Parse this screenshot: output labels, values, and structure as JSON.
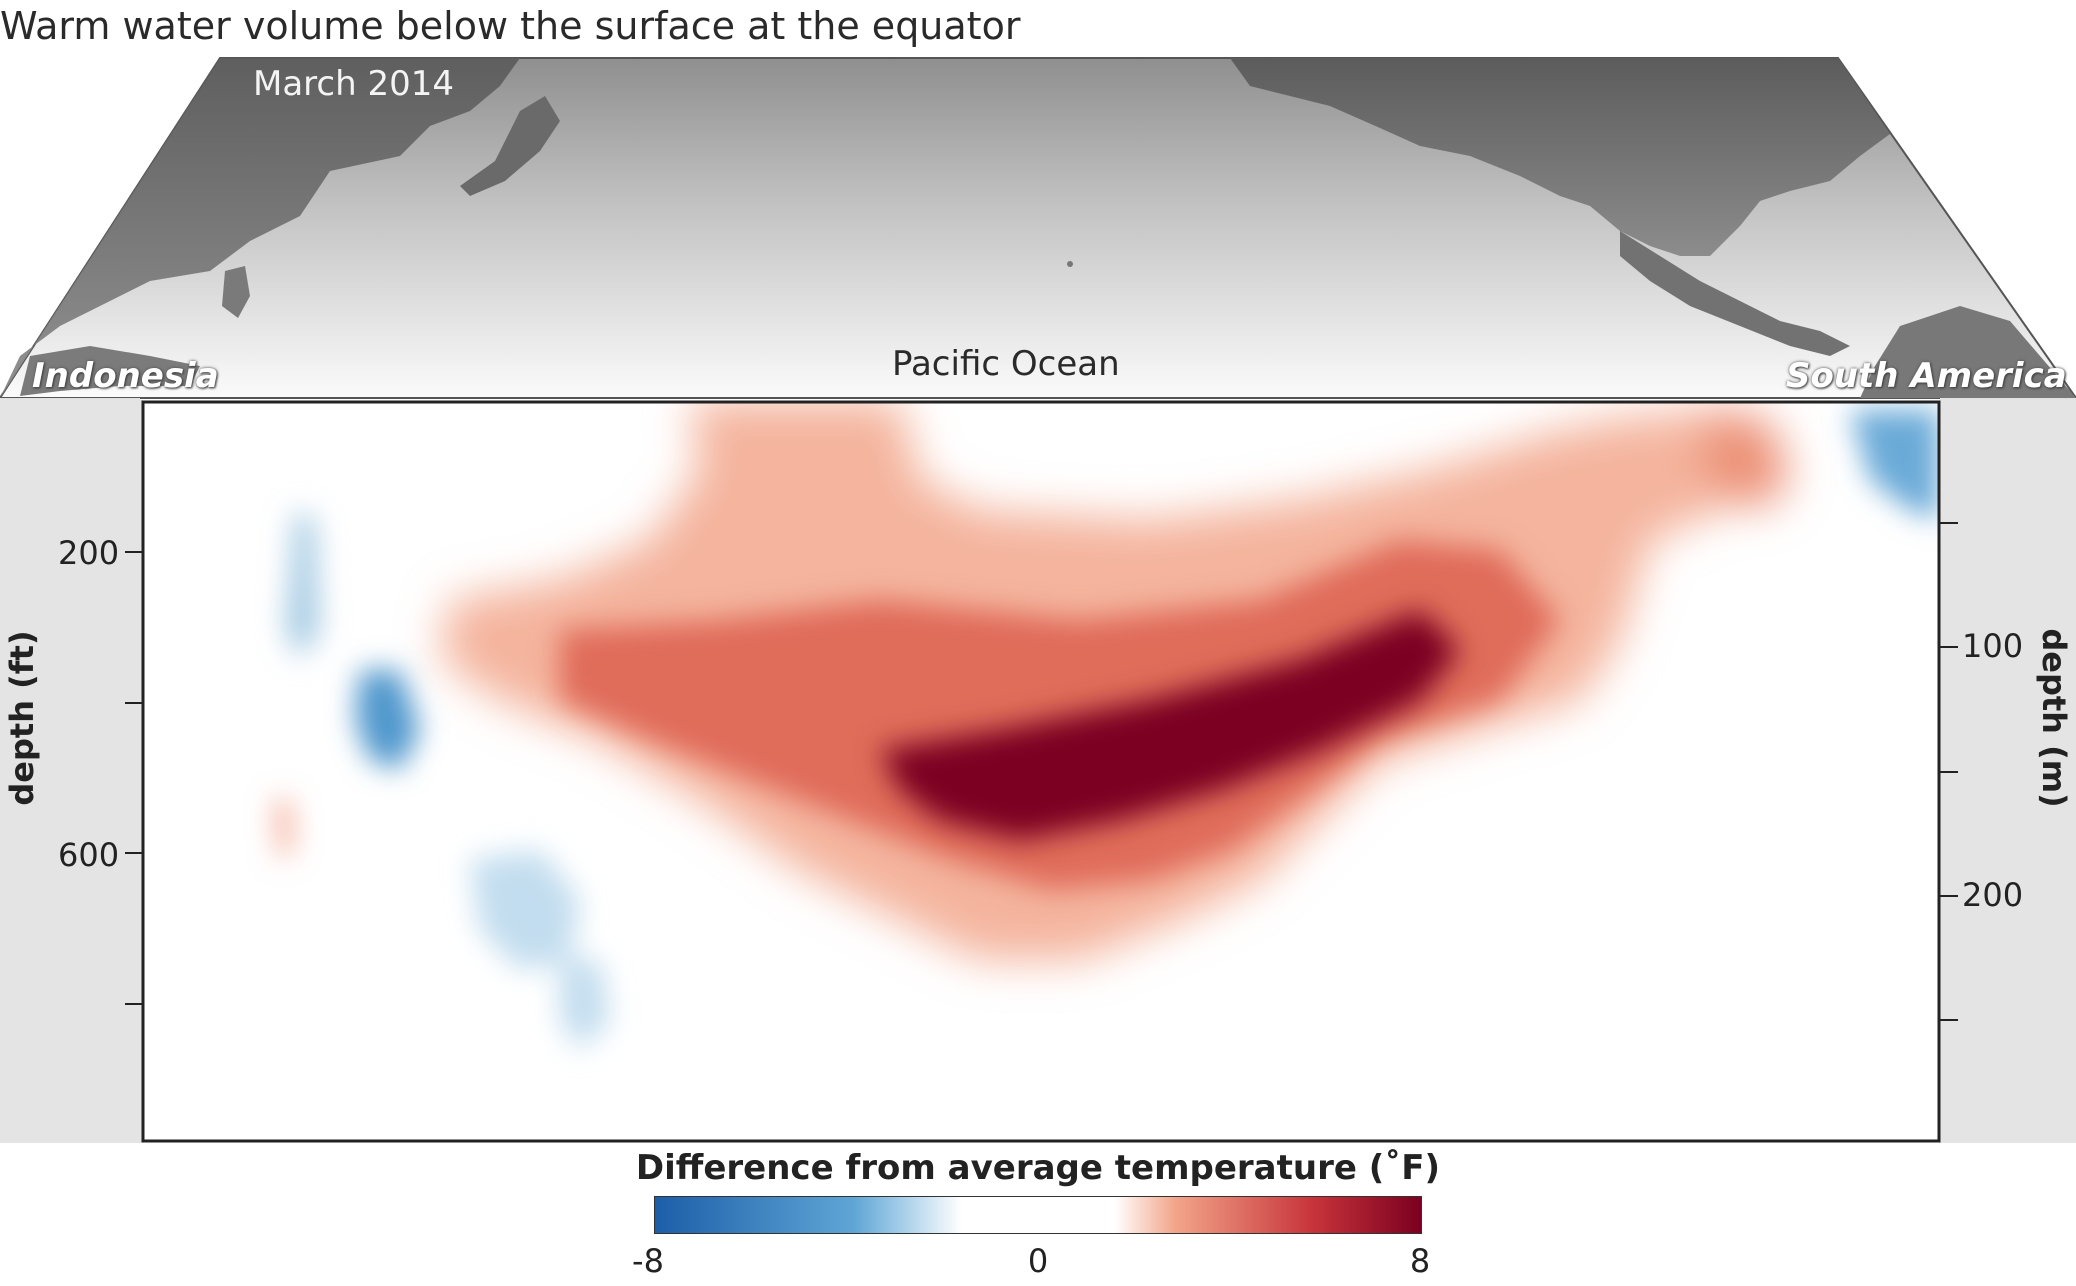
{
  "title": "Warm water volume below the surface at the equator",
  "map": {
    "date": "March 2014",
    "ocean_label": "Pacific Ocean",
    "west_label": "Indonesia",
    "east_label": "South America"
  },
  "section": {
    "left_axis": {
      "title": "depth (ft)",
      "tick_labels": [
        "200",
        "600"
      ]
    },
    "right_axis": {
      "title": "depth (m)",
      "tick_labels": [
        "100",
        "200"
      ]
    }
  },
  "legend": {
    "title": "Difference from average temperature (˚F)",
    "min_label": "-8",
    "mid_label": "0",
    "max_label": "8",
    "min": -8,
    "max": 8,
    "colors": [
      "#1d5ea8",
      "#5fa6d6",
      "#ffffff",
      "#f2a489",
      "#c7333a",
      "#7b0020"
    ]
  }
}
